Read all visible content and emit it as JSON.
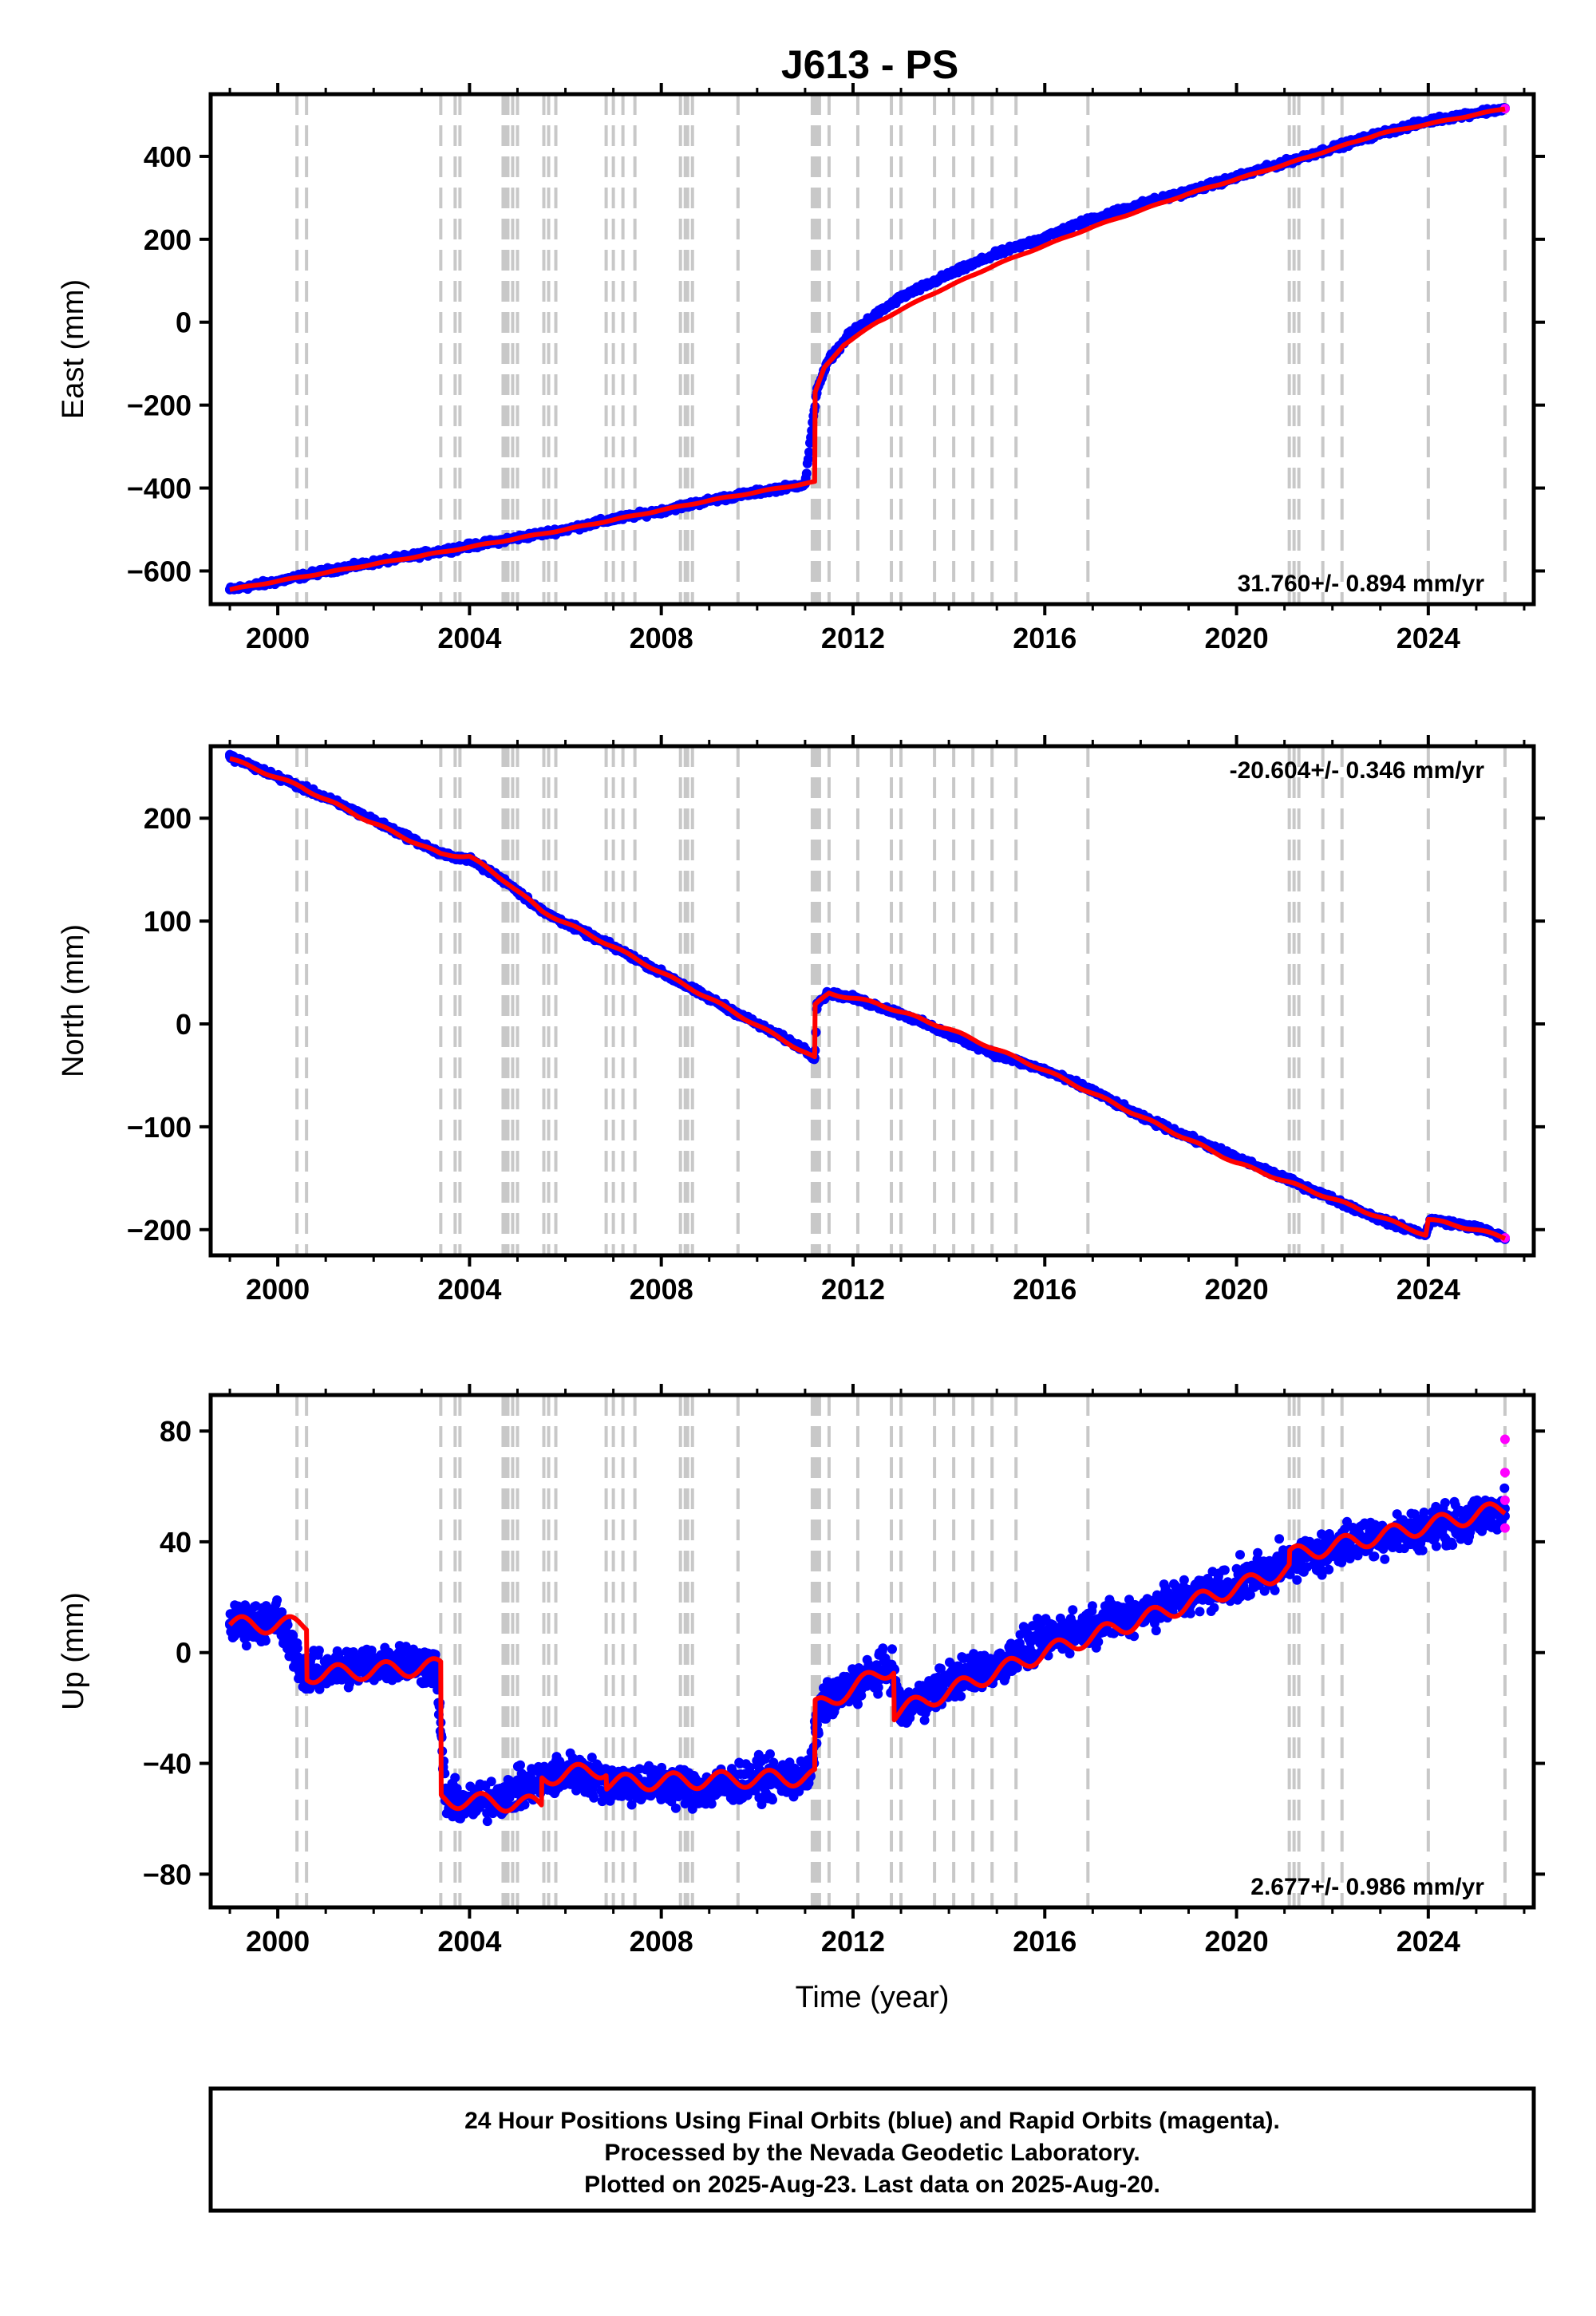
{
  "figure": {
    "footer": {
      "line1": "24 Hour Positions Using Final Orbits (blue) and Rapid Orbits (magenta).",
      "line2": "Processed by the Nevada Geodetic Laboratory.",
      "line3": "Plotted on 2025-Aug-23. Last data on 2025-Aug-20."
    },
    "colors": {
      "final": "#0000ff",
      "rapid": "#ff00ff",
      "model": "#ff0000",
      "events": "#c8c8c8"
    }
  },
  "chart_data": [
    {
      "type": "scatter",
      "title": "J613 - PS",
      "ylabel": "East (mm)",
      "xlabel": "",
      "xlim": [
        1998.6,
        2026.2
      ],
      "ylim": [
        -680,
        550
      ],
      "xticks": [
        2000,
        2004,
        2008,
        2012,
        2016,
        2020,
        2024
      ],
      "yticks": [
        -600,
        -400,
        -200,
        0,
        200,
        400
      ],
      "grid": false,
      "rate_label": "31.760+/- 0.894 mm/yr",
      "event_lines": [
        2000.4,
        2000.6,
        2003.4,
        2003.7,
        2003.8,
        2004.7,
        2004.75,
        2004.8,
        2004.9,
        2005.0,
        2005.55,
        2005.65,
        2005.8,
        2006.85,
        2007.0,
        2007.2,
        2007.45,
        2008.4,
        2008.5,
        2008.55,
        2008.65,
        2009.6,
        2011.15,
        2011.2,
        2011.25,
        2011.3,
        2011.5,
        2012.1,
        2012.8,
        2013.0,
        2013.7,
        2014.1,
        2014.5,
        2014.9,
        2015.4,
        2016.9,
        2021.1,
        2021.2,
        2021.3,
        2021.8,
        2022.2,
        2024.0,
        2025.6
      ],
      "model_curve": {
        "x": [
          1999.0,
          2003.4,
          2006.0,
          2009.0,
          2011.2,
          2011.21,
          2011.4,
          2011.8,
          2012.5,
          2013.5,
          2015.0,
          2017.0,
          2019.0,
          2021.0,
          2023.0,
          2025.6
        ],
        "y": [
          -645,
          -555,
          -500,
          -430,
          -385,
          -170,
          -110,
          -55,
          0,
          60,
          140,
          230,
          310,
          380,
          455,
          515
        ]
      },
      "series": [
        {
          "orbit": "final",
          "x": [
            1999.0,
            2000.0,
            2001.0,
            2002.0,
            2003.0,
            2004.0,
            2005.0,
            2006.0,
            2007.0,
            2008.0,
            2009.0,
            2010.0,
            2011.0,
            2011.25,
            2011.5,
            2012.0,
            2013.0,
            2014.0,
            2015.0,
            2016.0,
            2017.0,
            2018.0,
            2019.0,
            2020.0,
            2021.0,
            2022.0,
            2023.0,
            2024.0,
            2025.0,
            2025.6
          ],
          "y": [
            -645,
            -625,
            -600,
            -580,
            -560,
            -540,
            -520,
            -500,
            -475,
            -455,
            -430,
            -410,
            -390,
            -160,
            -90,
            -20,
            60,
            115,
            165,
            205,
            250,
            285,
            315,
            350,
            385,
            420,
            455,
            485,
            505,
            515
          ]
        },
        {
          "orbit": "rapid",
          "x": [
            2025.6
          ],
          "y": [
            515
          ]
        }
      ]
    },
    {
      "type": "scatter",
      "title": "",
      "ylabel": "North (mm)",
      "xlabel": "",
      "xlim": [
        1998.6,
        2026.2
      ],
      "ylim": [
        -225,
        270
      ],
      "xticks": [
        2000,
        2004,
        2008,
        2012,
        2016,
        2020,
        2024
      ],
      "yticks": [
        -200,
        -100,
        0,
        100,
        200
      ],
      "grid": false,
      "rate_label": "-20.604+/- 0.346 mm/yr",
      "event_lines": [
        2000.4,
        2000.6,
        2003.4,
        2003.7,
        2003.8,
        2004.7,
        2004.75,
        2004.8,
        2004.9,
        2005.0,
        2005.55,
        2005.65,
        2005.8,
        2006.85,
        2007.0,
        2007.2,
        2007.45,
        2008.4,
        2008.5,
        2008.55,
        2008.65,
        2009.6,
        2011.15,
        2011.2,
        2011.25,
        2011.3,
        2011.5,
        2012.1,
        2012.8,
        2013.0,
        2013.7,
        2014.1,
        2014.5,
        2014.9,
        2015.4,
        2016.9,
        2021.1,
        2021.2,
        2021.3,
        2021.8,
        2022.2,
        2024.0,
        2025.6
      ],
      "model_curve": {
        "x": [
          1999.0,
          2000.5,
          2002.0,
          2003.4,
          2004.0,
          2004.8,
          2005.5,
          2007.0,
          2009.0,
          2011.2,
          2011.21,
          2011.5,
          2012.5,
          2014.0,
          2016.0,
          2018.0,
          2020.0,
          2022.0,
          2023.95,
          2024.0,
          2025.0,
          2025.6
        ],
        "y": [
          258,
          230,
          195,
          165,
          163,
          137,
          110,
          75,
          25,
          -33,
          18,
          30,
          20,
          -5,
          -45,
          -90,
          -135,
          -170,
          -205,
          -190,
          -200,
          -208
        ]
      },
      "series": [
        {
          "orbit": "final",
          "x": [
            1999.0,
            2000.0,
            2001.0,
            2002.0,
            2003.0,
            2003.4,
            2004.0,
            2004.8,
            2005.5,
            2006.0,
            2007.0,
            2008.0,
            2009.0,
            2010.0,
            2011.0,
            2011.2,
            2011.25,
            2011.5,
            2012.0,
            2013.0,
            2014.0,
            2015.0,
            2016.0,
            2017.0,
            2018.0,
            2019.0,
            2020.0,
            2021.0,
            2022.0,
            2023.0,
            2023.95,
            2024.05,
            2025.0,
            2025.6
          ],
          "y": [
            260,
            240,
            220,
            198,
            175,
            165,
            160,
            137,
            110,
            98,
            75,
            50,
            25,
            0,
            -25,
            -33,
            20,
            30,
            25,
            10,
            -10,
            -30,
            -45,
            -65,
            -90,
            -110,
            -130,
            -150,
            -170,
            -190,
            -205,
            -190,
            -198,
            -208
          ]
        },
        {
          "orbit": "rapid",
          "x": [
            2025.6
          ],
          "y": [
            -208
          ]
        }
      ]
    },
    {
      "type": "scatter",
      "title": "",
      "ylabel": "Up (mm)",
      "xlabel": "Time (year)",
      "xlim": [
        1998.6,
        2026.2
      ],
      "ylim": [
        -92,
        93
      ],
      "xticks": [
        2000,
        2004,
        2008,
        2012,
        2016,
        2020,
        2024
      ],
      "yticks": [
        -80,
        -40,
        0,
        40,
        80
      ],
      "grid": false,
      "rate_label": "2.677+/- 0.986 mm/yr",
      "event_lines": [
        2000.4,
        2000.6,
        2003.4,
        2003.7,
        2003.8,
        2004.7,
        2004.75,
        2004.8,
        2004.9,
        2005.0,
        2005.55,
        2005.65,
        2005.8,
        2006.85,
        2007.0,
        2007.2,
        2007.45,
        2008.4,
        2008.5,
        2008.55,
        2008.65,
        2009.6,
        2011.15,
        2011.2,
        2011.25,
        2011.3,
        2011.5,
        2012.1,
        2012.8,
        2013.0,
        2013.7,
        2014.1,
        2014.5,
        2014.9,
        2015.4,
        2016.9,
        2021.1,
        2021.2,
        2021.3,
        2021.8,
        2022.2,
        2024.0,
        2025.6
      ],
      "model_curve": {
        "x": [
          1999.0,
          2000.6,
          2000.61,
          2003.4,
          2003.41,
          2005.5,
          2005.51,
          2006.85,
          2006.86,
          2011.2,
          2011.21,
          2012.85,
          2012.86,
          2016.0,
          2021.1,
          2021.11,
          2025.6
        ],
        "y": [
          10,
          10,
          -8,
          -5,
          -53,
          -55,
          -45,
          -42,
          -47,
          -45,
          -20,
          -5,
          -22,
          0,
          30,
          35,
          52
        ]
      },
      "series": [
        {
          "orbit": "final",
          "x": [
            1999.0,
            2000.0,
            2000.6,
            2001.5,
            2002.5,
            2003.3,
            2003.5,
            2004.0,
            2005.0,
            2006.0,
            2007.0,
            2008.0,
            2009.0,
            2010.0,
            2011.1,
            2011.3,
            2012.0,
            2012.8,
            2013.0,
            2014.0,
            2015.0,
            2016.0,
            2017.0,
            2018.0,
            2019.0,
            2020.0,
            2021.0,
            2022.0,
            2023.0,
            2024.0,
            2025.0,
            2025.6
          ],
          "y": [
            10,
            12,
            -8,
            -5,
            -3,
            -5,
            -53,
            -55,
            -50,
            -43,
            -47,
            -48,
            -49,
            -46,
            -45,
            -20,
            -12,
            -5,
            -22,
            -10,
            -5,
            5,
            10,
            15,
            20,
            25,
            32,
            38,
            42,
            45,
            48,
            52
          ]
        },
        {
          "orbit": "rapid",
          "x": [
            2025.6,
            2025.6,
            2025.6,
            2025.6
          ],
          "y": [
            77,
            65,
            55,
            45
          ]
        }
      ]
    }
  ]
}
